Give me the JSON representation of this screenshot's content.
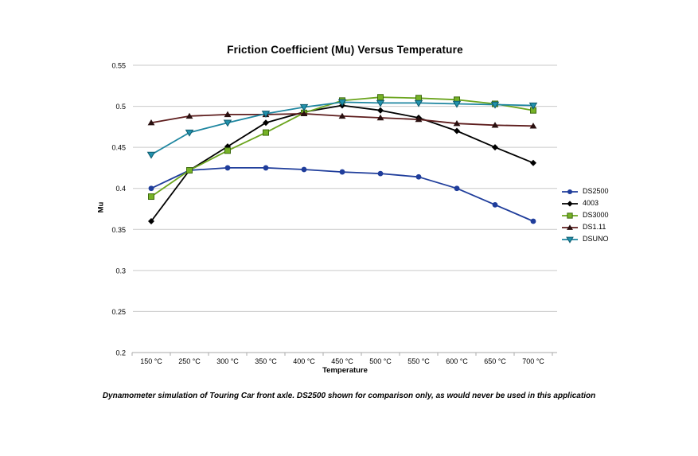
{
  "caption": "Dynamometer simulation of Touring Car front axle. DS2500 shown for comparison only, as would never be used in this application",
  "chart_data": {
    "type": "line",
    "title": "Friction Coefficient (Mu) Versus Temperature",
    "xlabel": "Temperature",
    "ylabel": "Mu",
    "categories": [
      "150 °C",
      "250 °C",
      "300 °C",
      "350 °C",
      "400 °C",
      "450 °C",
      "500 °C",
      "550 °C",
      "600 °C",
      "650 °C",
      "700 °C"
    ],
    "ylim": [
      0.2,
      0.55
    ],
    "yticks": [
      0.55,
      0.5,
      0.45,
      0.4,
      0.35,
      0.3,
      0.25,
      0.2
    ],
    "grid": true,
    "legend_position": "right",
    "colors": {
      "gridline": "#c9c9c9",
      "axis": "#aaaaaa",
      "text": "#000000"
    },
    "series": [
      {
        "name": "DS2500",
        "color": "#1F3D9B",
        "marker": "circle",
        "marker_color": "#1F3D9B",
        "values": [
          0.4,
          0.422,
          0.425,
          0.425,
          0.423,
          0.42,
          0.418,
          0.414,
          0.4,
          0.38,
          0.36
        ]
      },
      {
        "name": "4003",
        "color": "#000000",
        "marker": "diamond",
        "marker_color": "#000000",
        "values": [
          0.36,
          0.422,
          0.451,
          0.48,
          0.493,
          0.501,
          0.495,
          0.486,
          0.47,
          0.45,
          0.431
        ]
      },
      {
        "name": "DS3000",
        "color": "#6CA51F",
        "marker": "square",
        "marker_color": "#76B226",
        "marker_border": "#3E6B10",
        "values": [
          0.39,
          0.422,
          0.446,
          0.468,
          0.492,
          0.507,
          0.511,
          0.51,
          0.508,
          0.503,
          0.495
        ]
      },
      {
        "name": "DS1.11",
        "color": "#5E1E1E",
        "marker": "triangle-up",
        "marker_color": "#2A1010",
        "values": [
          0.48,
          0.488,
          0.49,
          0.49,
          0.491,
          0.488,
          0.486,
          0.484,
          0.479,
          0.477,
          0.476
        ]
      },
      {
        "name": "DSUNO",
        "color": "#1E86A0",
        "marker": "triangle-down",
        "marker_color": "#2191AC",
        "marker_border": "#0F5B6E",
        "values": [
          0.441,
          0.468,
          0.48,
          0.491,
          0.499,
          0.505,
          0.504,
          0.504,
          0.503,
          0.502,
          0.501
        ]
      }
    ]
  }
}
